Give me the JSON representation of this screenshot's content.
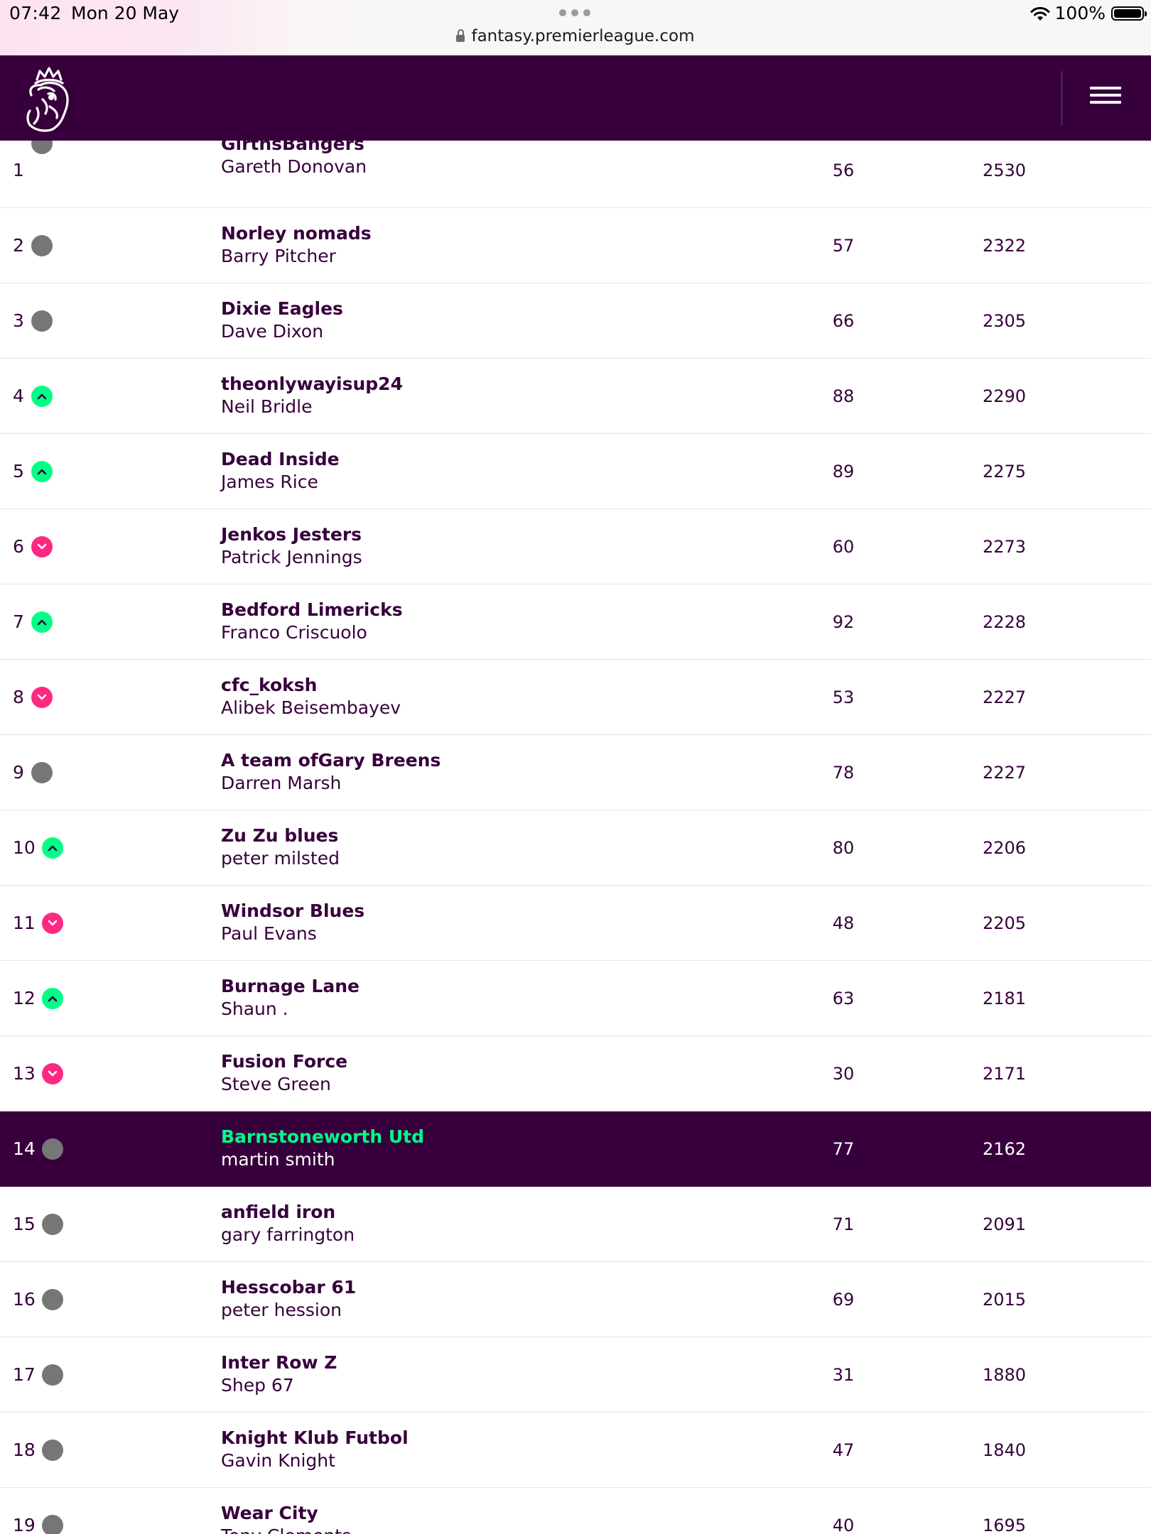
{
  "status_bar": {
    "time": "07:42",
    "date": "Mon 20 May",
    "url": "fantasy.premierleague.com",
    "battery": "100%"
  },
  "header": {
    "logo_icon": "premier-league-lion-icon",
    "menu_icon": "hamburger-menu-icon"
  },
  "colors": {
    "brand_purple": "#37003c",
    "up_green": "#00ff87",
    "down_pink": "#ff2882",
    "same_grey": "#767676"
  },
  "standings": [
    {
      "rank": "1",
      "movement": "same",
      "team": "GirthsBangers",
      "manager": "Gareth Donovan",
      "gw": "56",
      "total": "2530"
    },
    {
      "rank": "2",
      "movement": "same",
      "team": "Norley nomads",
      "manager": "Barry Pitcher",
      "gw": "57",
      "total": "2322"
    },
    {
      "rank": "3",
      "movement": "same",
      "team": "Dixie Eagles",
      "manager": "Dave Dixon",
      "gw": "66",
      "total": "2305"
    },
    {
      "rank": "4",
      "movement": "up",
      "team": "theonlywayisup24",
      "manager": "Neil Bridle",
      "gw": "88",
      "total": "2290"
    },
    {
      "rank": "5",
      "movement": "up",
      "team": "Dead Inside",
      "manager": "James Rice",
      "gw": "89",
      "total": "2275"
    },
    {
      "rank": "6",
      "movement": "down",
      "team": "Jenkos Jesters",
      "manager": "Patrick Jennings",
      "gw": "60",
      "total": "2273"
    },
    {
      "rank": "7",
      "movement": "up",
      "team": "Bedford Limericks",
      "manager": "Franco Criscuolo",
      "gw": "92",
      "total": "2228"
    },
    {
      "rank": "8",
      "movement": "down",
      "team": "cfc_koksh",
      "manager": "Alibek Beisembayev",
      "gw": "53",
      "total": "2227"
    },
    {
      "rank": "9",
      "movement": "same",
      "team": "A team ofGary Breens",
      "manager": "Darren Marsh",
      "gw": "78",
      "total": "2227"
    },
    {
      "rank": "10",
      "movement": "up",
      "team": "Zu Zu blues",
      "manager": "peter milsted",
      "gw": "80",
      "total": "2206"
    },
    {
      "rank": "11",
      "movement": "down",
      "team": "Windsor Blues",
      "manager": "Paul Evans",
      "gw": "48",
      "total": "2205"
    },
    {
      "rank": "12",
      "movement": "up",
      "team": "Burnage Lane",
      "manager": "Shaun .",
      "gw": "63",
      "total": "2181"
    },
    {
      "rank": "13",
      "movement": "down",
      "team": "Fusion Force",
      "manager": "Steve Green",
      "gw": "30",
      "total": "2171"
    },
    {
      "rank": "14",
      "movement": "same",
      "team": "Barnstoneworth Utd",
      "manager": "martin smith",
      "gw": "77",
      "total": "2162",
      "highlight": true
    },
    {
      "rank": "15",
      "movement": "same",
      "team": "anfield iron",
      "manager": "gary farrington",
      "gw": "71",
      "total": "2091"
    },
    {
      "rank": "16",
      "movement": "same",
      "team": "Hesscobar 61",
      "manager": "peter hession",
      "gw": "69",
      "total": "2015"
    },
    {
      "rank": "17",
      "movement": "same",
      "team": "Inter Row Z",
      "manager": "Shep 67",
      "gw": "31",
      "total": "1880"
    },
    {
      "rank": "18",
      "movement": "same",
      "team": "Knight Klub Futbol",
      "manager": "Gavin Knight",
      "gw": "47",
      "total": "1840"
    },
    {
      "rank": "19",
      "movement": "same",
      "team": "Wear City",
      "manager": "Tony Clements",
      "gw": "40",
      "total": "1695"
    }
  ]
}
